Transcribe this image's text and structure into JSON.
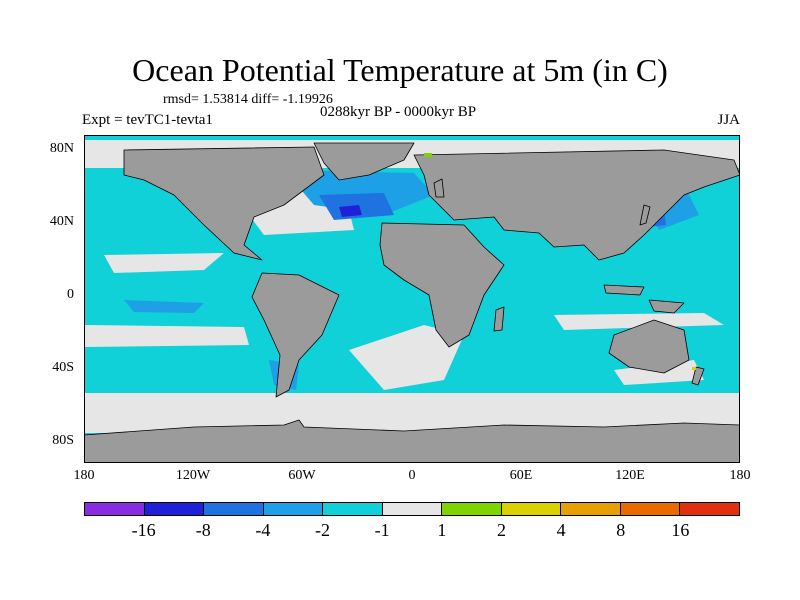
{
  "chart_data": {
    "type": "heatmap",
    "title": "Ocean Potential Temperature at 5m (in C)",
    "stats_text": "rmsd= 1.53814 diff= -1.19926",
    "period": "0288kyr BP - 0000kyr BP",
    "experiment": "Expt = tevTC1-tevta1",
    "season": "JJA",
    "x_ticks": [
      "180",
      "120W",
      "60W",
      "0",
      "60E",
      "120E",
      "180"
    ],
    "y_ticks": [
      "80N",
      "40N",
      "0",
      "40S",
      "80S"
    ],
    "colorbar": {
      "colors": [
        "#8a2be2",
        "#2020d8",
        "#1e73e0",
        "#1ea0e6",
        "#10d0d8",
        "#e6e6e6",
        "#7fd400",
        "#d8d000",
        "#e6a000",
        "#e86a00",
        "#e03010"
      ],
      "labels": [
        "-16",
        "-8",
        "-4",
        "-2",
        "-1",
        "1",
        "2",
        "4",
        "8",
        "16"
      ]
    },
    "map_colors": {
      "land": "#9b9b9b",
      "ocean_main": "#10d0d8",
      "near_zero": "#e6e6e6",
      "cool": "#1ea0e6",
      "cooler": "#1e73e0",
      "coldest": "#2020d8",
      "warm": "#7fd400"
    }
  }
}
